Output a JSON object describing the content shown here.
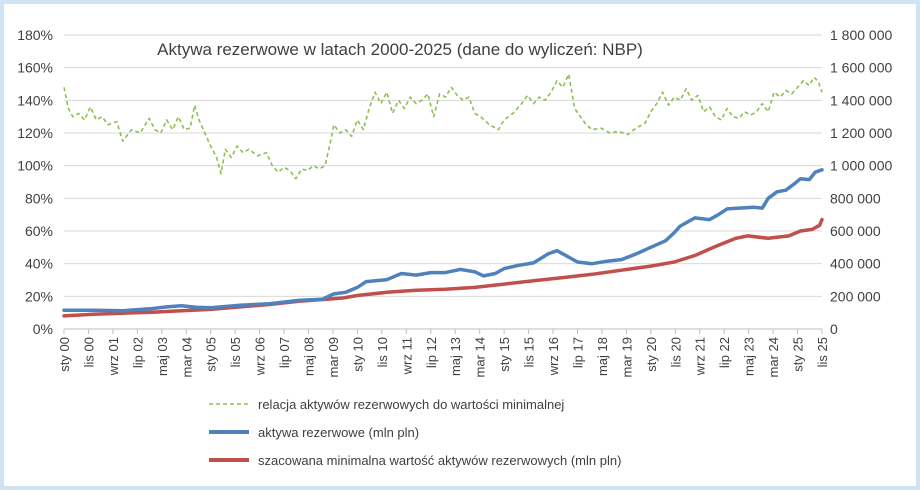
{
  "chart_data": {
    "type": "line",
    "title": "Aktywa rezerwowe w latach 2000-2025 (dane do wyliczeń: NBP)",
    "x_labels": [
      "sty 00",
      "lis 00",
      "wrz 01",
      "lip 02",
      "maj 03",
      "mar 04",
      "sty 05",
      "lis 05",
      "wrz 06",
      "lip 07",
      "maj 08",
      "mar 09",
      "sty 10",
      "lis 10",
      "wrz 11",
      "lip 12",
      "maj 13",
      "mar 14",
      "sty 15",
      "lis 15",
      "wrz 16",
      "lip 17",
      "maj 18",
      "mar 19",
      "sty 20",
      "lis 20",
      "wrz 21",
      "lip 22",
      "maj 23",
      "mar 24",
      "sty 25",
      "lis 25"
    ],
    "x_range": [
      2000.0,
      2025.833
    ],
    "left_axis": {
      "min": 0,
      "max": 1.8,
      "ticks": [
        0,
        0.2,
        0.4,
        0.6,
        0.8,
        1.0,
        1.2,
        1.4,
        1.6,
        1.8
      ],
      "tick_labels": [
        "0%",
        "20%",
        "40%",
        "60%",
        "80%",
        "100%",
        "120%",
        "140%",
        "160%",
        "180%"
      ]
    },
    "right_axis": {
      "min": 0,
      "max": 1800000,
      "ticks": [
        0,
        200000,
        400000,
        600000,
        800000,
        1000000,
        1200000,
        1400000,
        1600000,
        1800000
      ],
      "tick_labels": [
        "0",
        "200 000",
        "400 000",
        "600 000",
        "800 000",
        "1 000 000",
        "1 200 000",
        "1 400 000",
        "1 600 000",
        "1 800 000"
      ]
    },
    "series": [
      {
        "name": "relacja aktywów rezerwowych do wartości minimalnej",
        "axis": "left",
        "color": "#8cbf4f",
        "style": "dashed",
        "points": [
          [
            2000.0,
            1.48
          ],
          [
            2000.15,
            1.35
          ],
          [
            2000.3,
            1.3
          ],
          [
            2000.5,
            1.32
          ],
          [
            2000.7,
            1.28
          ],
          [
            2000.9,
            1.36
          ],
          [
            2001.1,
            1.28
          ],
          [
            2001.3,
            1.3
          ],
          [
            2001.5,
            1.25
          ],
          [
            2001.8,
            1.27
          ],
          [
            2002.0,
            1.15
          ],
          [
            2002.3,
            1.22
          ],
          [
            2002.6,
            1.2
          ],
          [
            2002.9,
            1.29
          ],
          [
            2003.1,
            1.22
          ],
          [
            2003.3,
            1.2
          ],
          [
            2003.5,
            1.28
          ],
          [
            2003.7,
            1.22
          ],
          [
            2003.9,
            1.3
          ],
          [
            2004.1,
            1.22
          ],
          [
            2004.3,
            1.23
          ],
          [
            2004.45,
            1.37
          ],
          [
            2004.6,
            1.28
          ],
          [
            2004.8,
            1.2
          ],
          [
            2005.0,
            1.12
          ],
          [
            2005.2,
            1.05
          ],
          [
            2005.35,
            0.95
          ],
          [
            2005.5,
            1.1
          ],
          [
            2005.7,
            1.05
          ],
          [
            2005.9,
            1.12
          ],
          [
            2006.1,
            1.08
          ],
          [
            2006.3,
            1.1
          ],
          [
            2006.6,
            1.06
          ],
          [
            2006.9,
            1.08
          ],
          [
            2007.1,
            1.0
          ],
          [
            2007.3,
            0.96
          ],
          [
            2007.5,
            0.99
          ],
          [
            2007.7,
            0.97
          ],
          [
            2007.9,
            0.92
          ],
          [
            2008.1,
            0.98
          ],
          [
            2008.3,
            0.97
          ],
          [
            2008.5,
            1.0
          ],
          [
            2008.7,
            0.98
          ],
          [
            2008.9,
            1.0
          ],
          [
            2009.05,
            1.12
          ],
          [
            2009.2,
            1.25
          ],
          [
            2009.4,
            1.2
          ],
          [
            2009.6,
            1.22
          ],
          [
            2009.8,
            1.18
          ],
          [
            2010.0,
            1.28
          ],
          [
            2010.2,
            1.22
          ],
          [
            2010.4,
            1.35
          ],
          [
            2010.6,
            1.45
          ],
          [
            2010.8,
            1.38
          ],
          [
            2011.0,
            1.45
          ],
          [
            2011.2,
            1.32
          ],
          [
            2011.4,
            1.4
          ],
          [
            2011.6,
            1.35
          ],
          [
            2011.8,
            1.42
          ],
          [
            2012.0,
            1.38
          ],
          [
            2012.2,
            1.4
          ],
          [
            2012.4,
            1.44
          ],
          [
            2012.6,
            1.3
          ],
          [
            2012.8,
            1.44
          ],
          [
            2013.0,
            1.42
          ],
          [
            2013.2,
            1.48
          ],
          [
            2013.4,
            1.43
          ],
          [
            2013.6,
            1.4
          ],
          [
            2013.8,
            1.42
          ],
          [
            2014.0,
            1.32
          ],
          [
            2014.2,
            1.3
          ],
          [
            2014.5,
            1.25
          ],
          [
            2014.8,
            1.22
          ],
          [
            2015.0,
            1.28
          ],
          [
            2015.3,
            1.32
          ],
          [
            2015.6,
            1.38
          ],
          [
            2015.8,
            1.43
          ],
          [
            2016.0,
            1.38
          ],
          [
            2016.2,
            1.42
          ],
          [
            2016.4,
            1.4
          ],
          [
            2016.6,
            1.45
          ],
          [
            2016.8,
            1.52
          ],
          [
            2017.0,
            1.48
          ],
          [
            2017.2,
            1.56
          ],
          [
            2017.4,
            1.35
          ],
          [
            2017.6,
            1.3
          ],
          [
            2017.8,
            1.25
          ],
          [
            2018.0,
            1.22
          ],
          [
            2018.3,
            1.23
          ],
          [
            2018.6,
            1.2
          ],
          [
            2018.9,
            1.21
          ],
          [
            2019.2,
            1.19
          ],
          [
            2019.5,
            1.23
          ],
          [
            2019.8,
            1.26
          ],
          [
            2020.0,
            1.33
          ],
          [
            2020.2,
            1.38
          ],
          [
            2020.4,
            1.45
          ],
          [
            2020.6,
            1.37
          ],
          [
            2020.8,
            1.42
          ],
          [
            2021.0,
            1.4
          ],
          [
            2021.2,
            1.47
          ],
          [
            2021.4,
            1.4
          ],
          [
            2021.6,
            1.43
          ],
          [
            2021.8,
            1.33
          ],
          [
            2022.0,
            1.36
          ],
          [
            2022.2,
            1.3
          ],
          [
            2022.4,
            1.28
          ],
          [
            2022.6,
            1.35
          ],
          [
            2022.8,
            1.3
          ],
          [
            2023.0,
            1.29
          ],
          [
            2023.2,
            1.33
          ],
          [
            2023.4,
            1.31
          ],
          [
            2023.6,
            1.33
          ],
          [
            2023.8,
            1.38
          ],
          [
            2024.0,
            1.33
          ],
          [
            2024.2,
            1.45
          ],
          [
            2024.4,
            1.42
          ],
          [
            2024.6,
            1.46
          ],
          [
            2024.8,
            1.44
          ],
          [
            2025.0,
            1.48
          ],
          [
            2025.2,
            1.52
          ],
          [
            2025.4,
            1.49
          ],
          [
            2025.55,
            1.54
          ],
          [
            2025.7,
            1.52
          ],
          [
            2025.833,
            1.45
          ]
        ]
      },
      {
        "name": "aktywa rezerwowe (mln pln)",
        "axis": "right",
        "color": "#4f81bd",
        "style": "solid",
        "points": [
          [
            2000.0,
            115000
          ],
          [
            2001.0,
            115000
          ],
          [
            2002.0,
            112000
          ],
          [
            2003.0,
            125000
          ],
          [
            2003.5,
            135000
          ],
          [
            2004.0,
            142000
          ],
          [
            2004.5,
            133000
          ],
          [
            2005.0,
            130000
          ],
          [
            2006.0,
            145000
          ],
          [
            2007.0,
            155000
          ],
          [
            2008.0,
            175000
          ],
          [
            2008.8,
            182000
          ],
          [
            2009.2,
            215000
          ],
          [
            2009.6,
            225000
          ],
          [
            2010.0,
            255000
          ],
          [
            2010.3,
            290000
          ],
          [
            2011.0,
            302000
          ],
          [
            2011.5,
            340000
          ],
          [
            2012.0,
            330000
          ],
          [
            2012.5,
            345000
          ],
          [
            2013.0,
            345000
          ],
          [
            2013.5,
            365000
          ],
          [
            2014.0,
            350000
          ],
          [
            2014.3,
            325000
          ],
          [
            2014.7,
            340000
          ],
          [
            2015.0,
            370000
          ],
          [
            2015.5,
            390000
          ],
          [
            2016.0,
            405000
          ],
          [
            2016.5,
            460000
          ],
          [
            2016.8,
            480000
          ],
          [
            2017.2,
            440000
          ],
          [
            2017.5,
            410000
          ],
          [
            2018.0,
            400000
          ],
          [
            2018.5,
            415000
          ],
          [
            2019.0,
            425000
          ],
          [
            2019.5,
            460000
          ],
          [
            2020.0,
            500000
          ],
          [
            2020.5,
            540000
          ],
          [
            2020.8,
            590000
          ],
          [
            2021.0,
            630000
          ],
          [
            2021.5,
            680000
          ],
          [
            2022.0,
            670000
          ],
          [
            2022.3,
            700000
          ],
          [
            2022.6,
            735000
          ],
          [
            2023.0,
            740000
          ],
          [
            2023.5,
            745000
          ],
          [
            2023.8,
            740000
          ],
          [
            2024.0,
            800000
          ],
          [
            2024.3,
            840000
          ],
          [
            2024.6,
            850000
          ],
          [
            2024.9,
            890000
          ],
          [
            2025.1,
            920000
          ],
          [
            2025.4,
            915000
          ],
          [
            2025.6,
            960000
          ],
          [
            2025.833,
            975000
          ]
        ]
      },
      {
        "name": "szacowana minimalna wartość aktywów rezerwowych  (mln pln)",
        "axis": "right",
        "color": "#c0504d",
        "style": "solid",
        "points": [
          [
            2000.0,
            80000
          ],
          [
            2001.0,
            90000
          ],
          [
            2002.0,
            97000
          ],
          [
            2003.0,
            103000
          ],
          [
            2004.0,
            112000
          ],
          [
            2005.0,
            120000
          ],
          [
            2006.0,
            135000
          ],
          [
            2007.0,
            150000
          ],
          [
            2008.0,
            170000
          ],
          [
            2009.0,
            183000
          ],
          [
            2009.5,
            190000
          ],
          [
            2010.0,
            205000
          ],
          [
            2011.0,
            225000
          ],
          [
            2012.0,
            237000
          ],
          [
            2013.0,
            243000
          ],
          [
            2014.0,
            255000
          ],
          [
            2015.0,
            275000
          ],
          [
            2016.0,
            295000
          ],
          [
            2017.0,
            315000
          ],
          [
            2018.0,
            335000
          ],
          [
            2019.0,
            360000
          ],
          [
            2020.0,
            385000
          ],
          [
            2020.8,
            410000
          ],
          [
            2021.5,
            450000
          ],
          [
            2022.2,
            505000
          ],
          [
            2022.9,
            555000
          ],
          [
            2023.3,
            570000
          ],
          [
            2024.0,
            555000
          ],
          [
            2024.7,
            570000
          ],
          [
            2025.1,
            600000
          ],
          [
            2025.5,
            610000
          ],
          [
            2025.75,
            635000
          ],
          [
            2025.833,
            670000
          ]
        ]
      }
    ],
    "legend_position": "bottom"
  }
}
